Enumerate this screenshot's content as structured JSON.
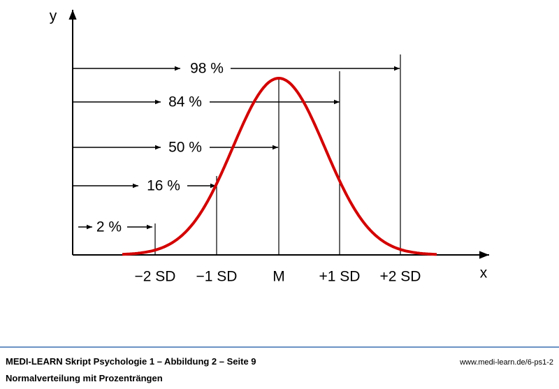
{
  "axes": {
    "y": "y",
    "x": "x"
  },
  "x_labels": [
    "−2 SD",
    "−1 SD",
    "M",
    "+1 SD",
    "+2 SD"
  ],
  "percentiles": [
    "98 %",
    "84 %",
    "50 %",
    "16 %",
    "2 %"
  ],
  "footer": {
    "title": "MEDI-LEARN Skript Psychologie 1 – Abbildung 2 – Seite 9",
    "url": "www.medi-learn.de/6-ps1-2",
    "subtitle": "Normalverteilung mit Prozenträngen"
  }
}
